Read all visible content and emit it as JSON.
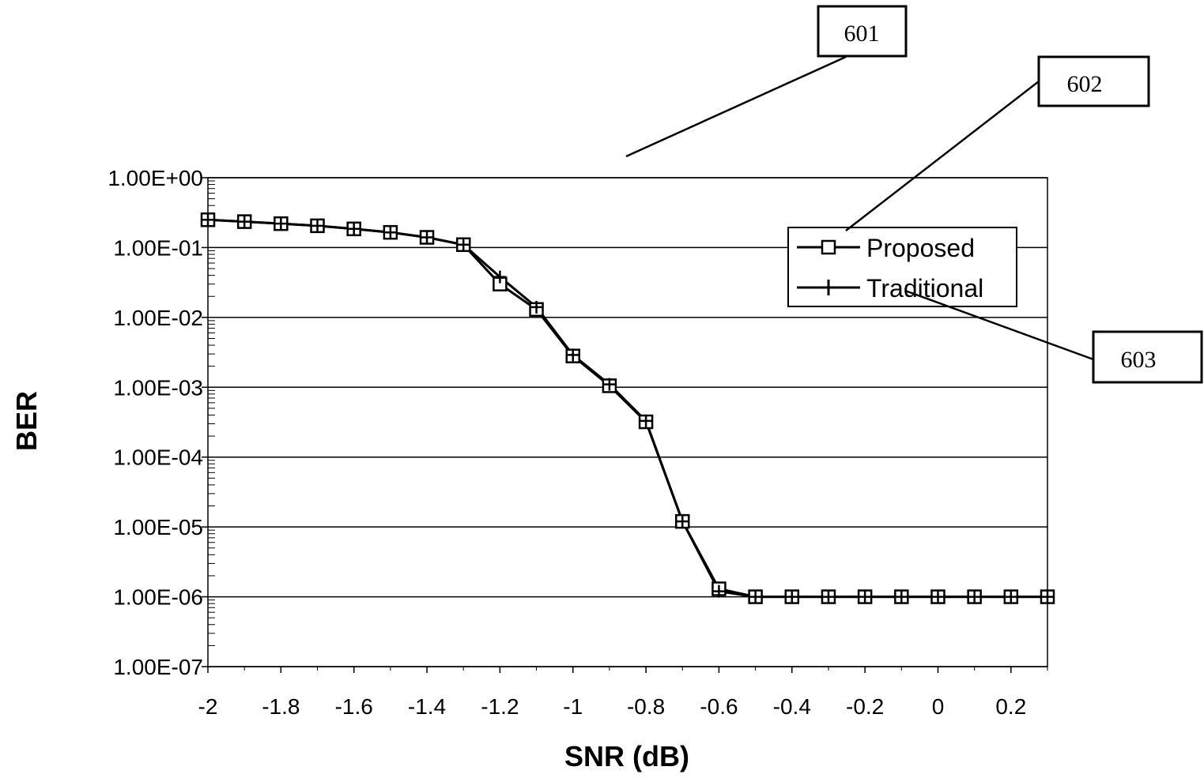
{
  "chart_data": {
    "type": "line",
    "xlabel": "SNR (dB)",
    "ylabel": "BER",
    "y_scale": "log",
    "xlim": [
      -2,
      0.3
    ],
    "ylim": [
      1e-07,
      1
    ],
    "x_ticks": [
      -2,
      -1.8,
      -1.6,
      -1.4,
      -1.2,
      -1,
      -0.8,
      -0.6,
      -0.4,
      -0.2,
      0,
      0.2
    ],
    "x_tick_labels": [
      "-2",
      "-1.8",
      "-1.6",
      "-1.4",
      "-1.2",
      "-1",
      "-0.8",
      "-0.6",
      "-0.4",
      "-0.2",
      "0",
      "0.2"
    ],
    "y_ticks": [
      1,
      0.1,
      0.01,
      0.001,
      0.0001,
      1e-05,
      1e-06,
      1e-07
    ],
    "y_tick_labels": [
      "1.00E+00",
      "1.00E-01",
      "1.00E-02",
      "1.00E-03",
      "1.00E-04",
      "1.00E-05",
      "1.00E-06",
      "1.00E-07"
    ],
    "grid": "horizontal major gridlines",
    "legend_position": "top-right",
    "x": [
      -2,
      -1.9,
      -1.8,
      -1.7,
      -1.6,
      -1.5,
      -1.4,
      -1.3,
      -1.2,
      -1.1,
      -1,
      -0.9,
      -0.8,
      -0.7,
      -0.6,
      -0.5,
      -0.4,
      -0.3,
      -0.2,
      -0.1,
      0,
      0.1,
      0.2,
      0.3
    ],
    "series": [
      {
        "name": "Proposed",
        "marker": "square",
        "values": [
          0.25,
          0.235,
          0.22,
          0.205,
          0.185,
          0.165,
          0.14,
          0.11,
          0.03,
          0.013,
          0.0028,
          0.00105,
          0.00032,
          1.2e-05,
          1.3e-06,
          1e-06,
          1e-06,
          1e-06,
          1e-06,
          1e-06,
          1e-06,
          1e-06,
          1e-06,
          1e-06
        ]
      },
      {
        "name": "Traditional",
        "marker": "plus",
        "values": [
          0.25,
          0.235,
          0.22,
          0.205,
          0.185,
          0.165,
          0.14,
          0.11,
          0.038,
          0.014,
          0.0029,
          0.0011,
          0.00033,
          1.2e-05,
          1.2e-06,
          1e-06,
          1e-06,
          1e-06,
          1e-06,
          1e-06,
          1e-06,
          1e-06,
          1e-06,
          1e-06
        ]
      }
    ]
  },
  "callouts": [
    {
      "label": "601"
    },
    {
      "label": "602"
    },
    {
      "label": "603"
    }
  ],
  "colors": {
    "line": "#000000",
    "grid": "#000000",
    "background": "#ffffff"
  }
}
